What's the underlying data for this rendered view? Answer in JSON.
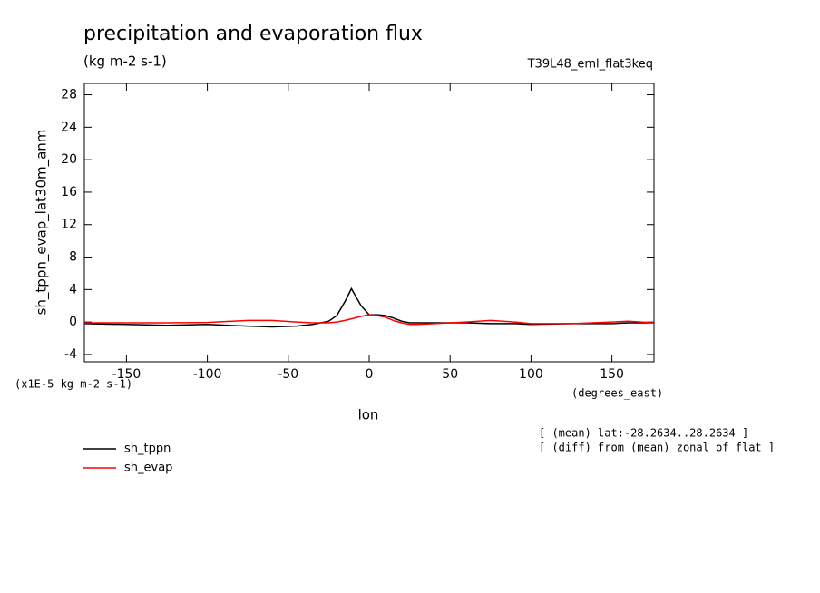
{
  "chart_data": {
    "type": "line",
    "title": "precipitation and evaporation flux",
    "subtitle": "(kg m-2 s-1)",
    "dataset": "T39L48_eml_flat3keq",
    "y_label": "sh_tppn_evap_lat30m_anm",
    "y_units": "(x1E-5 kg m-2 s-1)",
    "x_label": "lon",
    "x_units": "(degrees_east)",
    "annotations": [
      "[ (mean) lat:-28.2634..28.2634 ]",
      "[ (diff) from (mean) zonal of flat ]"
    ],
    "x": [
      -176,
      -150,
      -125,
      -100,
      -75,
      -60,
      -45,
      -35,
      -25,
      -20,
      -15,
      -11,
      -5,
      0,
      5,
      10,
      15,
      20,
      25,
      30,
      40,
      50,
      60,
      75,
      90,
      100,
      125,
      150,
      160,
      176
    ],
    "series": [
      {
        "name": "sh_tppn",
        "color": "#000000",
        "values": [
          -0.2,
          -0.3,
          -0.4,
          -0.3,
          -0.5,
          -0.6,
          -0.5,
          -0.3,
          0.1,
          0.8,
          2.5,
          4.1,
          2.0,
          0.9,
          0.9,
          0.8,
          0.5,
          0.1,
          -0.1,
          -0.1,
          -0.1,
          -0.1,
          -0.1,
          -0.2,
          -0.2,
          -0.3,
          -0.2,
          -0.2,
          -0.1,
          -0.1
        ]
      },
      {
        "name": "sh_evap",
        "color": "#ff0000",
        "values": [
          -0.1,
          -0.1,
          -0.1,
          -0.05,
          0.2,
          0.2,
          0.0,
          -0.1,
          -0.1,
          0.0,
          0.2,
          0.4,
          0.7,
          0.9,
          0.8,
          0.6,
          0.2,
          -0.1,
          -0.3,
          -0.3,
          -0.2,
          -0.1,
          0.0,
          0.2,
          0.0,
          -0.2,
          -0.2,
          0.0,
          0.1,
          -0.1
        ]
      }
    ],
    "xlim": [
      -176,
      176
    ],
    "ylim": [
      -4.9,
      29.4
    ],
    "xticks": [
      -150,
      -100,
      -50,
      0,
      50,
      100,
      150
    ],
    "yticks": [
      -4,
      0,
      4,
      8,
      12,
      16,
      20,
      24,
      28
    ]
  }
}
